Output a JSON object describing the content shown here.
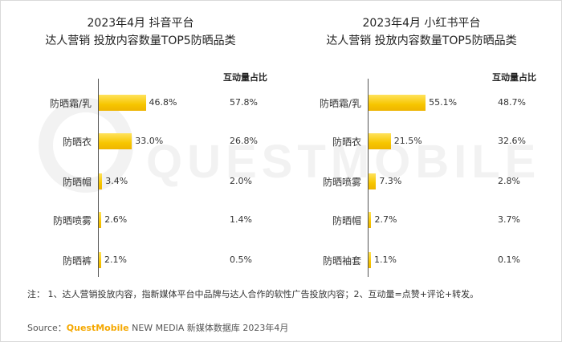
{
  "chart_data": [
    {
      "type": "bar",
      "title": "2023年4月 抖音平台",
      "subtitle": "达人营销 投放内容数量TOP5防晒品类",
      "categories": [
        "防晒霜/乳",
        "防晒衣",
        "防晒帽",
        "防晒喷雾",
        "防晒裤"
      ],
      "values": [
        46.8,
        33.0,
        3.4,
        2.6,
        2.1
      ],
      "value_labels": [
        "46.8%",
        "33.0%",
        "3.4%",
        "2.6%",
        "2.1%"
      ],
      "secondary_header": "互动量占比",
      "secondary_values": [
        57.8,
        26.8,
        2.0,
        1.4,
        0.5
      ],
      "secondary_labels": [
        "57.8%",
        "26.8%",
        "2.0%",
        "1.4%",
        "0.5%"
      ],
      "orientation": "horizontal",
      "bar_color": "#f7c600"
    },
    {
      "type": "bar",
      "title": "2023年4月 小红书平台",
      "subtitle": "达人营销 投放内容数量TOP5防晒品类",
      "categories": [
        "防晒霜/乳",
        "防晒衣",
        "防晒喷雾",
        "防晒帽",
        "防晒袖套"
      ],
      "values": [
        55.1,
        21.5,
        7.3,
        2.7,
        1.1
      ],
      "value_labels": [
        "55.1%",
        "21.5%",
        "7.3%",
        "2.7%",
        "1.1%"
      ],
      "secondary_header": "互动量占比",
      "secondary_values": [
        48.7,
        32.6,
        2.8,
        3.7,
        0.1
      ],
      "secondary_labels": [
        "48.7%",
        "32.6%",
        "2.8%",
        "3.7%",
        "0.1%"
      ],
      "orientation": "horizontal",
      "bar_color": "#f7c600"
    }
  ],
  "watermark": {
    "text": "QUESTMOBILE"
  },
  "note": "注： 1、达人营销投放内容，指新媒体平台中品牌与达人合作的软性广告投放内容；2、互动量=点赞+评论+转发。",
  "source": {
    "prefix": "Source：",
    "brand": "QuestMobile",
    "rest": " NEW MEDIA 新媒体数据库 2023年4月"
  }
}
